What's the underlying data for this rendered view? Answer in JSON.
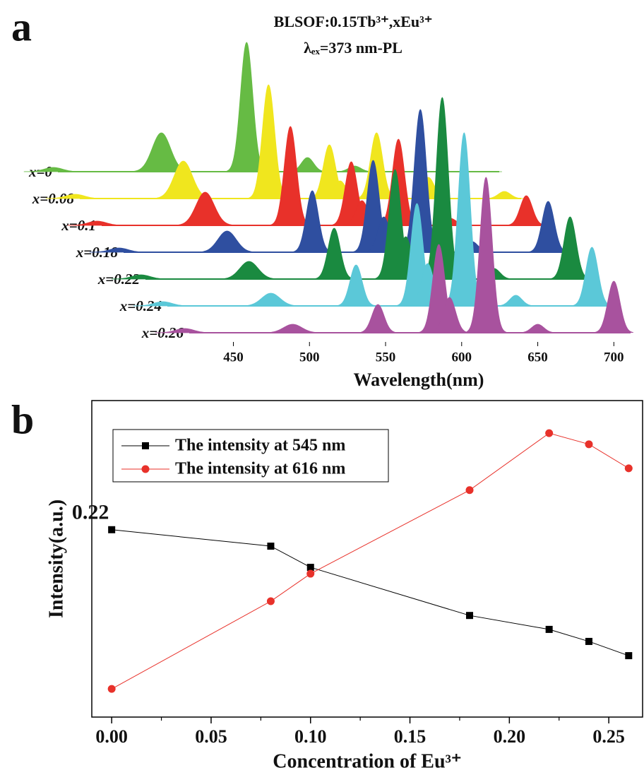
{
  "chart_data": [
    {
      "type": "waterfall",
      "panel_label": "a",
      "title": "BLSOF:0.15Tb³⁺,xEu³⁺",
      "subtitle": "λₑₓ=373 nm-PL",
      "x_label": "Wavelength(nm)",
      "x": [
        418,
        489,
        545,
        585,
        592,
        616,
        650,
        700
      ],
      "xlim": [
        421,
        711
      ],
      "xticks": [
        450,
        500,
        550,
        600,
        650,
        700
      ],
      "series": [
        {
          "name": "x=0",
          "color": "#66bb44",
          "values": [
            6,
            55,
            183,
            20,
            0,
            8,
            0,
            0
          ]
        },
        {
          "name": "x=0.08",
          "color": "#f0e61e",
          "values": [
            6,
            53,
            161,
            76,
            25,
            93,
            30,
            10
          ]
        },
        {
          "name": "x=0.1",
          "color": "#e8312a",
          "values": [
            6,
            47,
            140,
            90,
            35,
            122,
            10,
            42
          ]
        },
        {
          "name": "x=0.18",
          "color": "#2f4fa0",
          "values": [
            6,
            30,
            87,
            130,
            50,
            202,
            15,
            72
          ]
        },
        {
          "name": "x=0.22",
          "color": "#1a8a40",
          "values": [
            6,
            25,
            72,
            155,
            60,
            257,
            15,
            88
          ]
        },
        {
          "name": "x=0.24",
          "color": "#5bc8d8",
          "values": [
            6,
            18,
            58,
            145,
            60,
            245,
            15,
            83
          ]
        },
        {
          "name": "x=0.26",
          "color": "#a8529e",
          "values": [
            6,
            12,
            40,
            125,
            50,
            220,
            12,
            73
          ]
        }
      ]
    },
    {
      "type": "line",
      "panel_label": "b",
      "x_label": "Concentration of Eu³⁺",
      "y_label": "Intensity(a.u.)",
      "annotation": "0.22",
      "x": [
        0,
        0.08,
        0.1,
        0.18,
        0.22,
        0.24,
        0.26
      ],
      "xlim": [
        -0.01,
        0.267
      ],
      "ylim": [
        0,
        100
      ],
      "xticks": [
        {
          "value": 0,
          "label": "0.00"
        },
        {
          "value": 0.05,
          "label": "0.05"
        },
        {
          "value": 0.1,
          "label": "0.10"
        },
        {
          "value": 0.15,
          "label": "0.15"
        },
        {
          "value": 0.2,
          "label": "0.20"
        },
        {
          "value": 0.25,
          "label": "0.25"
        }
      ],
      "legend": "upper left",
      "series": [
        {
          "name": "The intensity at 545 nm",
          "color": "#000000",
          "marker": "square",
          "values": [
            59.2,
            54.0,
            47.3,
            32.1,
            27.7,
            23.9,
            19.4
          ]
        },
        {
          "name": "The intensity at 616 nm",
          "color": "#e8312a",
          "marker": "circle",
          "values": [
            8.9,
            36.6,
            45.3,
            71.7,
            89.7,
            86.2,
            78.6
          ]
        }
      ]
    }
  ]
}
